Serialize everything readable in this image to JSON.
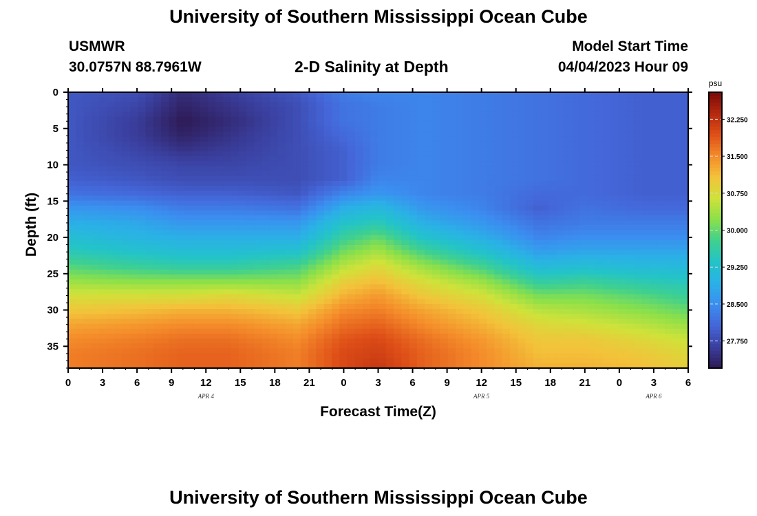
{
  "page": {
    "title": "University of Southern Mississippi Ocean Cube",
    "station": "USMWR",
    "coords": "30.0757N  88.7961W",
    "subtitle": "2-D Salinity at Depth",
    "model_label": "Model Start Time",
    "model_time": "04/04/2023 Hour 09",
    "footer_title": "University of Southern Mississippi Ocean Cube"
  },
  "chart_data": {
    "type": "heatmap",
    "title": "2-D Salinity at Depth",
    "xlabel": "Forecast Time(Z)",
    "ylabel": "Depth (ft)",
    "x_ticks": [
      "0",
      "3",
      "6",
      "9",
      "12",
      "15",
      "18",
      "21",
      "0",
      "3",
      "6",
      "9",
      "12",
      "15",
      "18",
      "21",
      "0",
      "3",
      "6"
    ],
    "x_range_hours": [
      0,
      54
    ],
    "date_labels": [
      {
        "text": "APR 4",
        "hour": 12
      },
      {
        "text": "APR 5",
        "hour": 36
      },
      {
        "text": "APR 6",
        "hour": 51
      }
    ],
    "y_ticks": [
      0,
      5,
      10,
      15,
      20,
      25,
      30,
      35
    ],
    "ylim": [
      0,
      38
    ],
    "y_inverted": true,
    "colorbar": {
      "unit": "psu",
      "ticks": [
        "32.250",
        "31.500",
        "30.750",
        "30.000",
        "29.250",
        "28.500",
        "27.750"
      ],
      "range": [
        27.2,
        32.8
      ],
      "colors": [
        "#2e1a55",
        "#3a3f9e",
        "#4466d8",
        "#3b8ef0",
        "#2ab1e6",
        "#23c4c8",
        "#3fd08f",
        "#8be04a",
        "#cfe23a",
        "#f3c23a",
        "#f48b2a",
        "#df4f18",
        "#b5280e",
        "#7a0a08"
      ]
    },
    "depth_grid_ft": [
      0,
      2,
      4,
      6,
      8,
      10,
      12,
      14,
      16,
      18,
      20,
      22,
      24,
      26,
      28,
      30,
      32,
      34,
      36,
      38
    ],
    "series": [
      {
        "hour": 0,
        "values": [
          27.9,
          27.9,
          27.9,
          27.9,
          27.9,
          27.9,
          28.0,
          28.2,
          28.6,
          28.9,
          29.2,
          29.5,
          29.9,
          30.3,
          30.7,
          31.0,
          31.3,
          31.5,
          31.6,
          31.6
        ]
      },
      {
        "hour": 6,
        "values": [
          27.8,
          27.7,
          27.6,
          27.6,
          27.7,
          27.8,
          27.9,
          28.1,
          28.5,
          28.8,
          29.0,
          29.3,
          29.7,
          30.2,
          30.7,
          31.1,
          31.4,
          31.6,
          31.7,
          31.7
        ]
      },
      {
        "hour": 10,
        "values": [
          27.4,
          27.3,
          27.2,
          27.3,
          27.5,
          27.7,
          27.8,
          28.0,
          28.3,
          28.6,
          28.9,
          29.2,
          29.6,
          30.2,
          30.7,
          31.2,
          31.5,
          31.7,
          31.8,
          31.8
        ]
      },
      {
        "hour": 14,
        "values": [
          27.6,
          27.5,
          27.4,
          27.5,
          27.6,
          27.7,
          27.8,
          28.0,
          28.3,
          28.6,
          28.9,
          29.2,
          29.6,
          30.2,
          30.8,
          31.2,
          31.5,
          31.7,
          31.8,
          31.8
        ]
      },
      {
        "hour": 20,
        "values": [
          27.9,
          27.8,
          27.8,
          27.8,
          27.8,
          27.8,
          27.8,
          27.9,
          28.2,
          28.6,
          28.9,
          29.3,
          29.8,
          30.2,
          30.6,
          31.0,
          31.3,
          31.5,
          31.6,
          31.6
        ]
      },
      {
        "hour": 24,
        "values": [
          28.3,
          28.2,
          28.2,
          28.1,
          28.0,
          28.0,
          28.0,
          28.4,
          28.9,
          29.3,
          29.7,
          30.1,
          30.5,
          30.9,
          31.2,
          31.5,
          31.7,
          31.9,
          32.0,
          32.0
        ]
      },
      {
        "hour": 27,
        "values": [
          28.4,
          28.3,
          28.3,
          28.3,
          28.3,
          28.3,
          28.4,
          28.6,
          29.1,
          29.5,
          30.0,
          30.4,
          30.8,
          31.1,
          31.4,
          31.6,
          31.8,
          32.0,
          32.1,
          32.2
        ]
      },
      {
        "hour": 31,
        "values": [
          28.4,
          28.4,
          28.4,
          28.4,
          28.4,
          28.4,
          28.4,
          28.4,
          28.6,
          28.9,
          29.3,
          29.8,
          30.3,
          30.7,
          31.0,
          31.3,
          31.5,
          31.7,
          31.8,
          31.8
        ]
      },
      {
        "hour": 36,
        "values": [
          28.3,
          28.3,
          28.3,
          28.3,
          28.3,
          28.3,
          28.3,
          28.3,
          28.4,
          28.6,
          28.9,
          29.3,
          29.8,
          30.3,
          30.7,
          31.0,
          31.2,
          31.4,
          31.5,
          31.5
        ]
      },
      {
        "hour": 41,
        "values": [
          28.2,
          28.2,
          28.2,
          28.2,
          28.2,
          28.2,
          28.2,
          28.1,
          28.0,
          28.2,
          28.4,
          28.7,
          29.1,
          29.6,
          30.1,
          30.5,
          30.8,
          31.0,
          31.1,
          31.2
        ]
      },
      {
        "hour": 45,
        "values": [
          28.1,
          28.1,
          28.1,
          28.1,
          28.1,
          28.1,
          28.1,
          28.1,
          28.2,
          28.3,
          28.5,
          28.8,
          29.2,
          29.7,
          30.1,
          30.4,
          30.7,
          31.0,
          31.1,
          31.2
        ]
      },
      {
        "hour": 50,
        "values": [
          28.0,
          28.0,
          28.0,
          28.0,
          28.0,
          28.0,
          28.0,
          28.0,
          28.1,
          28.3,
          28.5,
          28.8,
          29.1,
          29.5,
          29.9,
          30.2,
          30.5,
          30.8,
          31.0,
          31.1
        ]
      },
      {
        "hour": 54,
        "values": [
          28.0,
          28.0,
          28.0,
          28.0,
          28.0,
          28.0,
          28.0,
          28.0,
          28.1,
          28.3,
          28.5,
          28.8,
          29.1,
          29.4,
          29.7,
          30.0,
          30.3,
          30.6,
          30.8,
          30.9
        ]
      }
    ]
  }
}
